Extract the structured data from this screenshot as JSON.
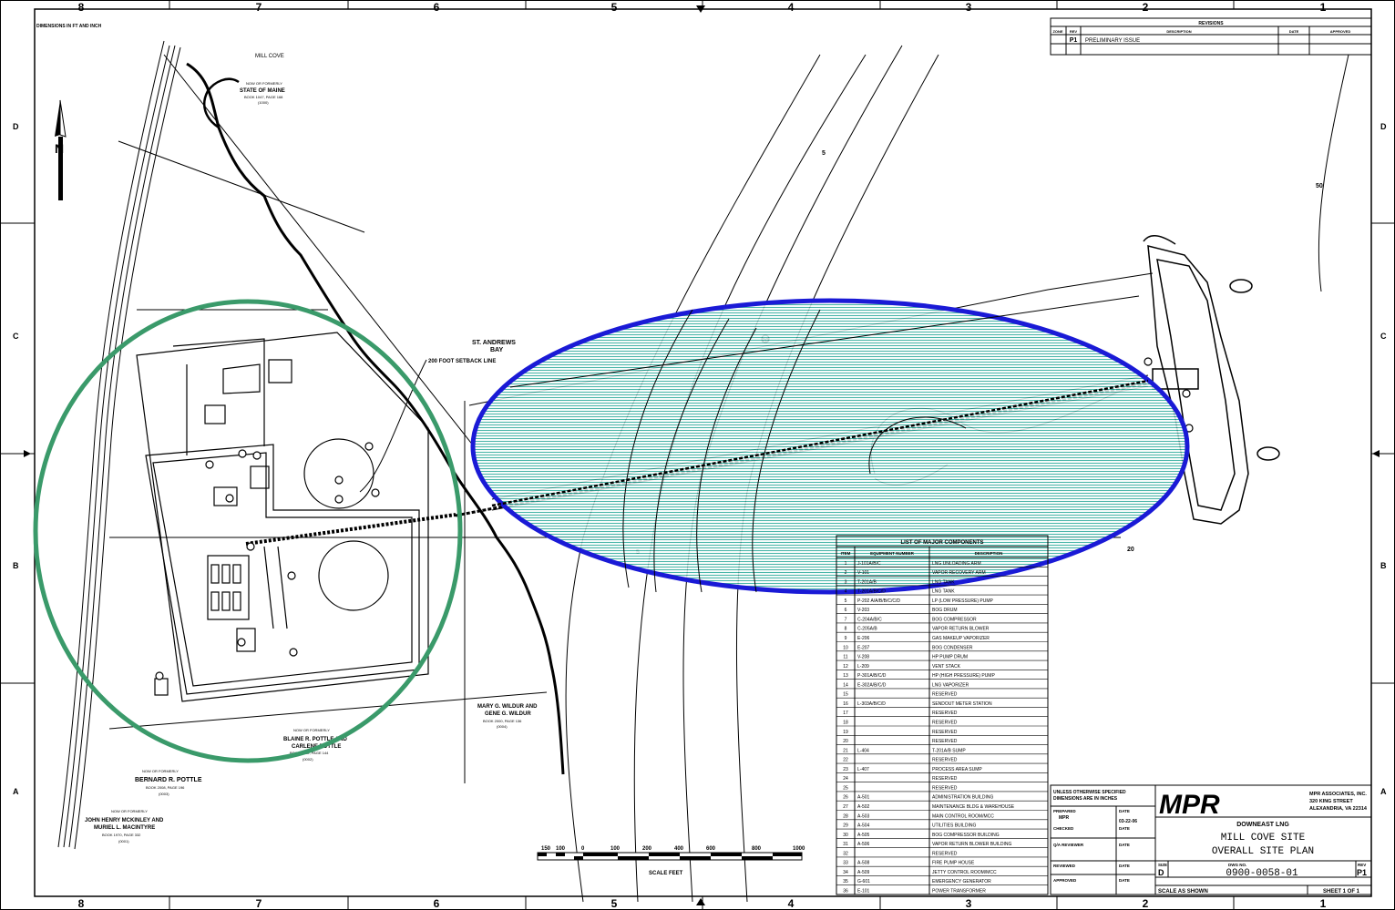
{
  "grid": {
    "columns": [
      "8",
      "7",
      "6",
      "5",
      "4",
      "3",
      "2",
      "1"
    ],
    "rows": [
      "D",
      "C",
      "B",
      "A"
    ]
  },
  "corner_note": "DIMENSIONS IN FT AND INCH",
  "revisions": {
    "title": "REVISIONS",
    "headers": [
      "ZONE",
      "REV",
      "DESCRIPTION",
      "DATE",
      "APPROVED"
    ],
    "rows": [
      {
        "rev": "P1",
        "description": "PRELIMINARY ISSUE"
      }
    ]
  },
  "north_arrow": "N",
  "site_labels": {
    "mill_cove": "MILL COVE",
    "state_owner_a": "NOW OR FORMERLY",
    "state_owner_b": "STATE OF MAINE",
    "state_book": "BOOK 1047, PAGE 168",
    "state_num": "(1000)",
    "st_andrews_1": "ST. ANDREWS",
    "st_andrews_2": "BAY",
    "setback": "200 FOOT SETBACK LINE",
    "wildur_1": "MARY G. WILDUR AND",
    "wildur_2": "GENE G. WILDUR",
    "wildur_book": "BOOK 2000, PAGE 136",
    "wildur_num": "(0004)",
    "pottle_now": "NOW OR FORMERLY",
    "pottle_name_1": "BLAINE R. POTTLE AND",
    "pottle_name_2": "CARLENE POTTLE",
    "pottle_book": "BOOK 2002, PAGE 144",
    "pottle_num": "(0002)",
    "bernard_now": "NOW OR FORMERLY",
    "bernard_name": "BERNARD R. POTTLE",
    "bernard_book": "BOOK 2008, PAGE 196",
    "bernard_num": "(0003)",
    "mckinley_now": "NOW OR FORMERLY",
    "mckinley_name_1": "JOHN HENRY MCKINLEY AND",
    "mckinley_name_2": "MURIEL L. MACINTYRE",
    "mckinley_book": "BOOK 1970, PAGE 332",
    "mckinley_num": "(0001)",
    "contour_a": "5",
    "contour_b": "20",
    "contour_c": "50",
    "contour_d": "20",
    "contour_e": "5"
  },
  "scale": {
    "ticks": [
      "150",
      "100",
      "0",
      "100",
      "200",
      "400",
      "600",
      "800",
      "1000"
    ],
    "label": "SCALE FEET"
  },
  "components": {
    "title": "LIST OF MAJOR COMPONENTS",
    "headers": [
      "ITEM",
      "EQUIPMENT NUMBER",
      "DESCRIPTION"
    ],
    "rows": [
      {
        "item": "1",
        "equip": "J-101A/B/C",
        "desc": "LNG UNLOADING ARM"
      },
      {
        "item": "2",
        "equip": "V-101",
        "desc": "VAPOR RECOVERY ARM"
      },
      {
        "item": "3",
        "equip": "T-201A/B",
        "desc": "LNG TANK"
      },
      {
        "item": "4",
        "equip": "T-201A/B/C/D",
        "desc": "LNG TANK"
      },
      {
        "item": "5",
        "equip": "P-202 A/A/B/B/C/C/D",
        "desc": "LP (LOW PRESSURE) PUMP"
      },
      {
        "item": "6",
        "equip": "V-203",
        "desc": "BOG DRUM"
      },
      {
        "item": "7",
        "equip": "C-204A/B/C",
        "desc": "BOG COMPRESSOR"
      },
      {
        "item": "8",
        "equip": "C-205A/B",
        "desc": "VAPOR RETURN BLOWER"
      },
      {
        "item": "9",
        "equip": "E-206",
        "desc": "GAS MAKEUP VAPORIZER"
      },
      {
        "item": "10",
        "equip": "E-207",
        "desc": "BOG CONDENSER"
      },
      {
        "item": "11",
        "equip": "V-208",
        "desc": "HP PUMP DRUM"
      },
      {
        "item": "12",
        "equip": "L-209",
        "desc": "VENT STACK"
      },
      {
        "item": "13",
        "equip": "P-301A/B/C/D",
        "desc": "HP (HIGH PRESSURE) PUMP"
      },
      {
        "item": "14",
        "equip": "E-302A/B/C/D",
        "desc": "LNG VAPORIZER"
      },
      {
        "item": "15",
        "equip": "",
        "desc": "RESERVED"
      },
      {
        "item": "16",
        "equip": "L-303A/B/C/D",
        "desc": "SENDOUT METER STATION"
      },
      {
        "item": "17",
        "equip": "",
        "desc": "RESERVED"
      },
      {
        "item": "18",
        "equip": "",
        "desc": "RESERVED"
      },
      {
        "item": "19",
        "equip": "",
        "desc": "RESERVED"
      },
      {
        "item": "20",
        "equip": "",
        "desc": "RESERVED"
      },
      {
        "item": "21",
        "equip": "L-404",
        "desc": "T-201A/B SUMP"
      },
      {
        "item": "22",
        "equip": "",
        "desc": "RESERVED"
      },
      {
        "item": "23",
        "equip": "L-407",
        "desc": "PROCESS AREA SUMP"
      },
      {
        "item": "24",
        "equip": "",
        "desc": "RESERVED"
      },
      {
        "item": "25",
        "equip": "",
        "desc": "RESERVED"
      },
      {
        "item": "26",
        "equip": "A-501",
        "desc": "ADMINISTRATION BUILDING"
      },
      {
        "item": "27",
        "equip": "A-502",
        "desc": "MAINTENANCE BLDG & WAREHOUSE"
      },
      {
        "item": "28",
        "equip": "A-503",
        "desc": "MAIN CONTROL ROOM/MCC"
      },
      {
        "item": "29",
        "equip": "A-504",
        "desc": "UTILITIES BUILDING"
      },
      {
        "item": "30",
        "equip": "A-505",
        "desc": "BOG COMPRESSOR BUILDING"
      },
      {
        "item": "31",
        "equip": "A-506",
        "desc": "VAPOR RETURN BLOWER BUILDING"
      },
      {
        "item": "32",
        "equip": "",
        "desc": "RESERVED"
      },
      {
        "item": "33",
        "equip": "A-508",
        "desc": "FIRE PUMP HOUSE"
      },
      {
        "item": "34",
        "equip": "A-509",
        "desc": "JETTY CONTROL ROOM/MCC"
      },
      {
        "item": "35",
        "equip": "G-601",
        "desc": "EMERGENCY GENERATOR"
      },
      {
        "item": "36",
        "equip": "E-101",
        "desc": "POWER TRANSFORMER"
      }
    ]
  },
  "title_block": {
    "notes_1": "UNLESS OTHERWISE SPECIFIED",
    "notes_2": "DIMENSIONS ARE IN INCHES",
    "prepared_label": "PREPARED",
    "prepared_name": "MPR",
    "date_label": "DATE",
    "date_value": "03-22-06",
    "checked_label": "CHECKED",
    "date2_label": "DATE",
    "qa_label": "Q/A REVIEWER",
    "date3_label": "DATE",
    "reviewed_label": "REVIEWED",
    "date4_label": "DATE",
    "approved_label": "APPROVED",
    "date5_label": "DATE",
    "logo": "MPR",
    "company_1": "MPR ASSOCIATES, INC.",
    "company_2": "320 KING STREET",
    "company_3": "ALEXANDRIA, VA 22314",
    "project": "DOWNEAST LNG",
    "title_1": "MILL COVE SITE",
    "title_2": "OVERALL SITE PLAN",
    "size_label": "SIZE",
    "size_value": "D",
    "dwg_label": "DWG NO.",
    "dwg_value": "0900-0058-01",
    "rev_label": "REV",
    "rev_value": "P1",
    "scale_text": "SCALE AS SHOWN",
    "sheet_text": "SHEET 1 OF 1"
  }
}
